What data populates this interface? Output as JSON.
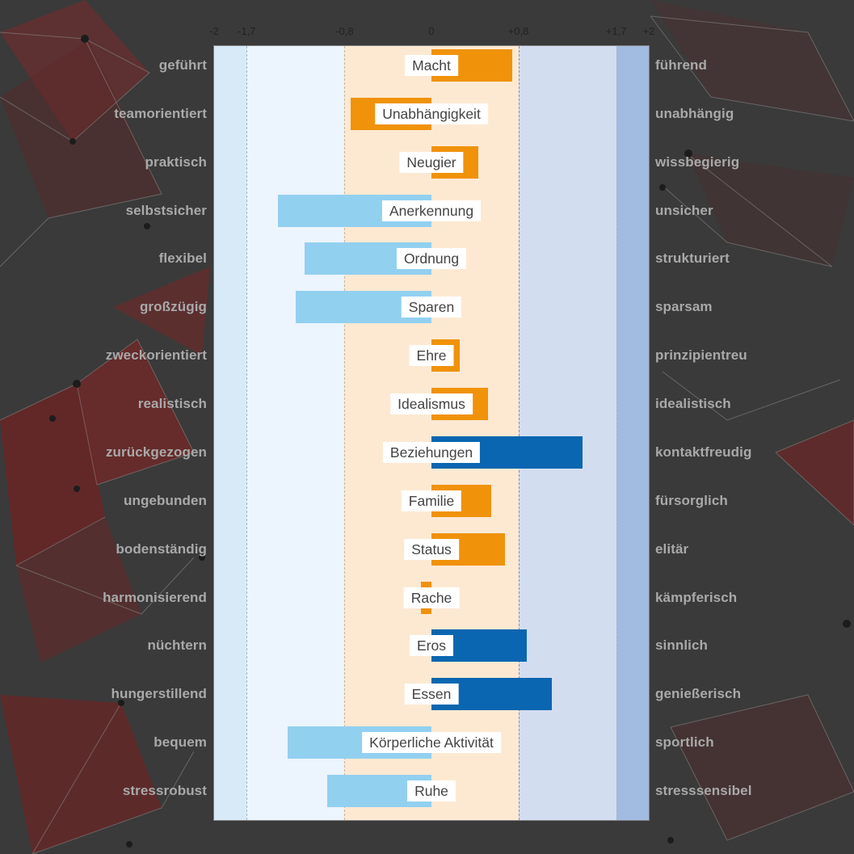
{
  "chart_data": {
    "type": "bar",
    "orientation": "horizontal",
    "xlim": [
      -2,
      2
    ],
    "tick_labels": [
      "-2",
      "-1,7",
      "-0,8",
      "0",
      "+0,8",
      "+1,7",
      "+2"
    ],
    "tick_values": [
      -2,
      -1.7,
      -0.8,
      0,
      0.8,
      1.7,
      2
    ],
    "zones": [
      {
        "from": -2,
        "to": -1.7,
        "color": "#d8eaf7"
      },
      {
        "from": -1.7,
        "to": -0.8,
        "color": "#ecf4fd"
      },
      {
        "from": -0.8,
        "to": 0.8,
        "color": "#fde9d2"
      },
      {
        "from": 0.8,
        "to": 1.7,
        "color": "#d3ddf0"
      },
      {
        "from": 1.7,
        "to": 2,
        "color": "#a2bbe0"
      }
    ],
    "colors": {
      "orange": "#f0920a",
      "light_blue": "#92d0f0",
      "dark_blue": "#0a66b0",
      "label_background": "#ffffff"
    },
    "categories": [
      "Macht",
      "Unabhängigkeit",
      "Neugier",
      "Anerkennung",
      "Ordnung",
      "Sparen",
      "Ehre",
      "Idealismus",
      "Beziehungen",
      "Familie",
      "Status",
      "Rache",
      "Eros",
      "Essen",
      "Körperliche Aktivität",
      "Ruhe"
    ],
    "values": [
      0.74,
      -0.74,
      0.43,
      -1.41,
      -1.17,
      -1.25,
      0.26,
      0.52,
      1.39,
      0.55,
      0.68,
      -0.1,
      0.88,
      1.11,
      -1.32,
      -0.96
    ],
    "bar_colors": [
      "orange",
      "orange",
      "orange",
      "light_blue",
      "light_blue",
      "light_blue",
      "orange",
      "orange",
      "dark_blue",
      "orange",
      "orange",
      "orange",
      "dark_blue",
      "dark_blue",
      "light_blue",
      "light_blue"
    ],
    "left_labels": [
      "geführt",
      "teamorientiert",
      "praktisch",
      "selbstsicher",
      "flexibel",
      "großzügig",
      "zweckorientiert",
      "realistisch",
      "zurückgezogen",
      "ungebunden",
      "bodenständig",
      "harmonisierend",
      "nüchtern",
      "hungerstillend",
      "bequem",
      "stressrobust"
    ],
    "right_labels": [
      "führend",
      "unabhängig",
      "wissbegierig",
      "unsicher",
      "strukturiert",
      "sparsam",
      "prinzipientreu",
      "idealistisch",
      "kontaktfreudig",
      "fürsorglich",
      "elitär",
      "kämpferisch",
      "sinnlich",
      "genießerisch",
      "sportlich",
      "stresssensibel"
    ],
    "grid": false,
    "legend": "none"
  }
}
